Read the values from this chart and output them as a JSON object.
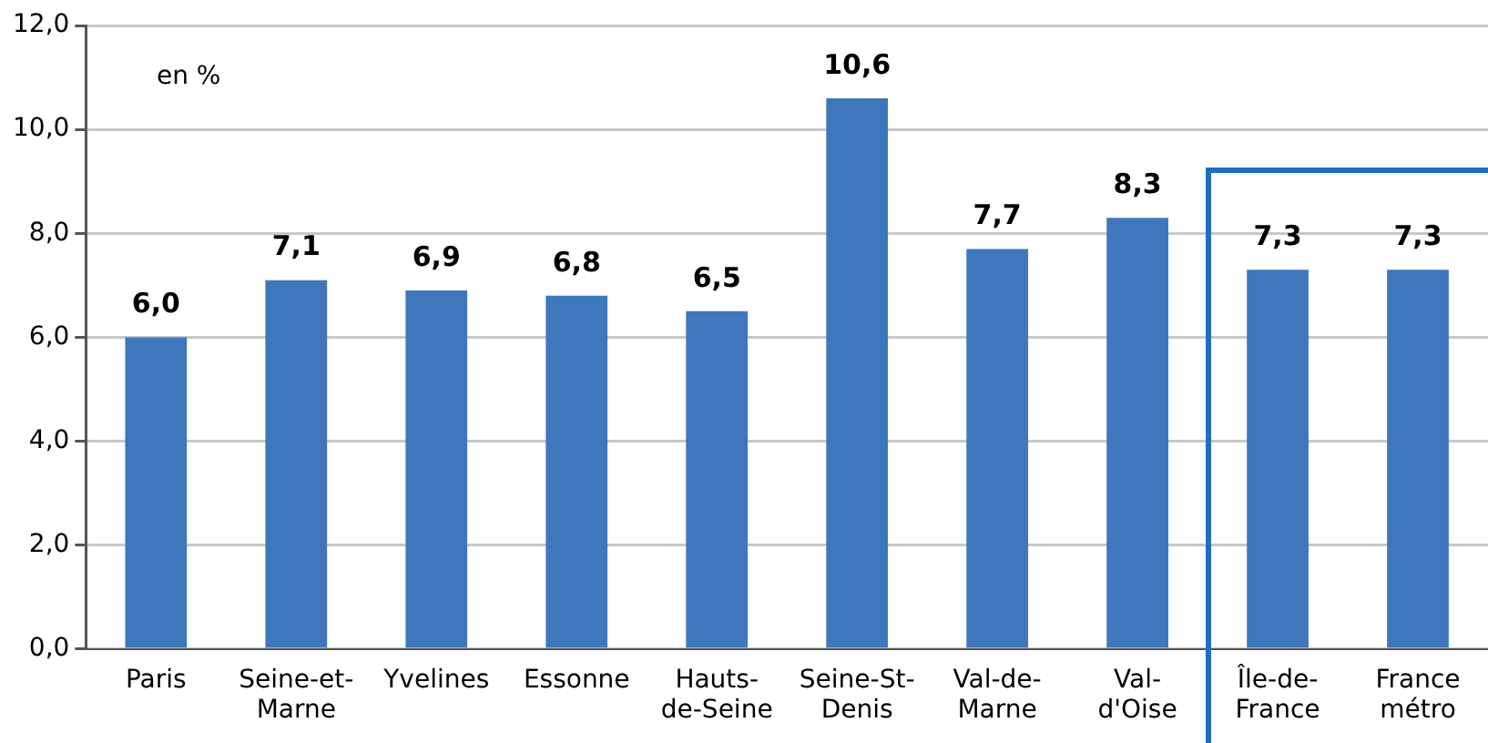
{
  "chart_data": {
    "type": "bar",
    "categories": [
      "Paris",
      "Seine-et-\nMarne",
      "Yvelines",
      "Essonne",
      "Hauts-\nde-Seine",
      "Seine-St-\nDenis",
      "Val-de-\nMarne",
      "Val-\nd'Oise",
      "Île-de-\nFrance",
      "France\nmétro"
    ],
    "values": [
      6.0,
      7.1,
      6.9,
      6.8,
      6.5,
      10.6,
      7.7,
      8.3,
      7.3,
      7.3
    ],
    "value_labels": [
      "6,0",
      "7,1",
      "6,9",
      "6,8",
      "6,5",
      "10,6",
      "7,7",
      "8,3",
      "7,3",
      "7,3"
    ],
    "color": "#3f77bd",
    "ylim": [
      0,
      12
    ],
    "yticks": [
      {
        "value": 0,
        "label": "0,0"
      },
      {
        "value": 2,
        "label": "2,0"
      },
      {
        "value": 4,
        "label": "4,0"
      },
      {
        "value": 6,
        "label": "6,0"
      },
      {
        "value": 8,
        "label": "8,0"
      },
      {
        "value": 10,
        "label": "10,0"
      },
      {
        "value": 12,
        "label": "12,0"
      }
    ],
    "grid": "y",
    "legend": false,
    "annotations": [
      "en %"
    ]
  }
}
